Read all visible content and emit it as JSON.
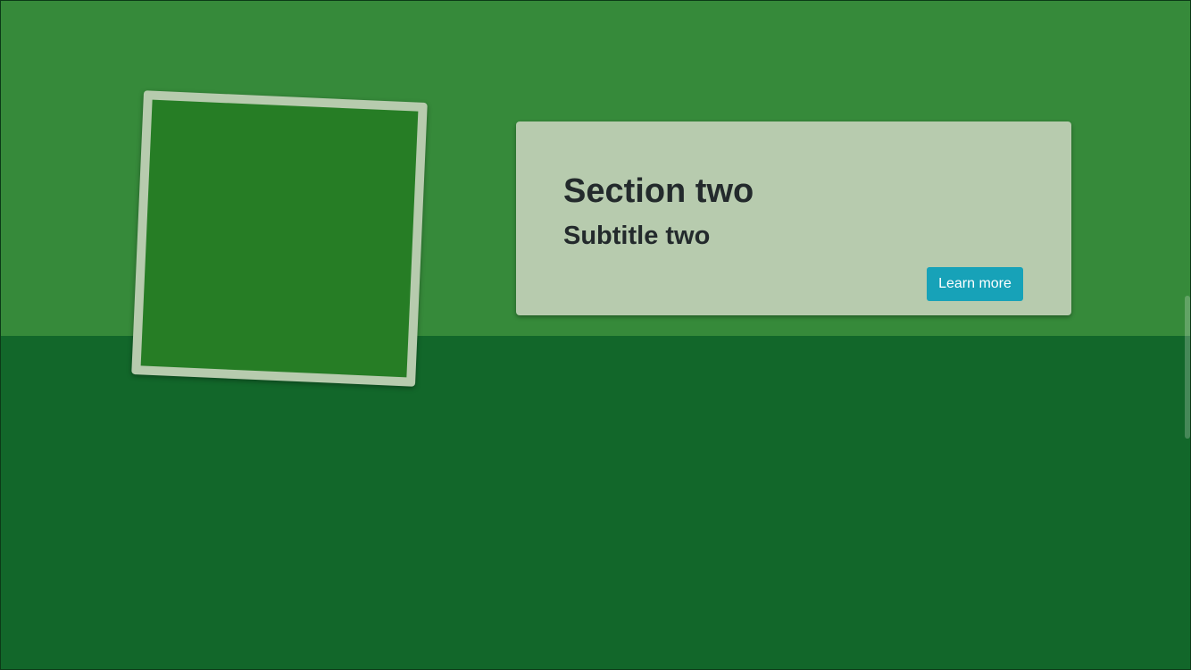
{
  "hero": {
    "colors": {
      "top_band": "#368a3a",
      "bottom_band": "#12672a",
      "photo_fill": "#267d25",
      "photo_border": "#b7cbae"
    }
  },
  "card": {
    "title": "Section two",
    "subtitle": "Subtitle two",
    "button_label": "Learn more",
    "background": "#b7cbae",
    "button_color": "#17a2b8"
  }
}
